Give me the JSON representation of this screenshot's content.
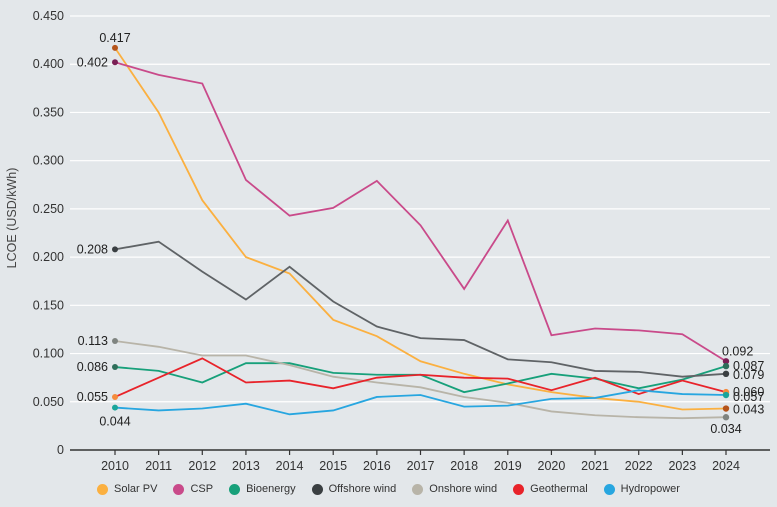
{
  "chart_data": {
    "type": "line",
    "title": "",
    "xlabel": "",
    "ylabel": "LCOE (USD/kWh)",
    "ylim": [
      0,
      0.45
    ],
    "yticks": [
      "0",
      "0.050",
      "0.100",
      "0.150",
      "0.200",
      "0.250",
      "0.300",
      "0.350",
      "0.400",
      "0.450"
    ],
    "ytick_values": [
      0,
      0.05,
      0.1,
      0.15,
      0.2,
      0.25,
      0.3,
      0.35,
      0.4,
      0.45
    ],
    "grid": true,
    "legend_position": "bottom",
    "x": [
      "2010",
      "2011",
      "2012",
      "2013",
      "2014",
      "2015",
      "2016",
      "2017",
      "2018",
      "2019",
      "2020",
      "2021",
      "2022",
      "2023",
      "2024"
    ],
    "series": [
      {
        "name": "Solar PV",
        "color": "#fbb040",
        "marker_color": "#b5541b",
        "values": [
          0.417,
          0.35,
          0.259,
          0.2,
          0.183,
          0.135,
          0.118,
          0.092,
          0.079,
          0.068,
          0.06,
          0.054,
          0.05,
          0.042,
          0.043
        ],
        "start_label": "0.417",
        "end_label": "0.043"
      },
      {
        "name": "CSP",
        "color": "#c94a8a",
        "marker_color": "#7a1f55",
        "values": [
          0.402,
          0.389,
          0.38,
          0.28,
          0.243,
          0.251,
          0.279,
          0.233,
          0.167,
          0.238,
          0.119,
          0.126,
          0.124,
          0.12,
          0.092
        ],
        "start_label": "0.402",
        "end_label": "0.092"
      },
      {
        "name": "Bioenergy",
        "color": "#17a07a",
        "marker_color": "#2e6e5a",
        "values": [
          0.086,
          0.082,
          0.07,
          0.09,
          0.09,
          0.08,
          0.078,
          0.078,
          0.06,
          0.069,
          0.079,
          0.074,
          0.064,
          0.073,
          0.087
        ],
        "start_label": "0.086",
        "end_label": "0.087"
      },
      {
        "name": "Offshore wind",
        "color": "#5f6366",
        "marker_color": "#3a3f42",
        "values": [
          0.208,
          0.216,
          0.185,
          0.156,
          0.19,
          0.154,
          0.128,
          0.116,
          0.114,
          0.094,
          0.091,
          0.082,
          0.081,
          0.076,
          0.079
        ],
        "start_label": "0.208",
        "end_label": "0.079"
      },
      {
        "name": "Onshore wind",
        "color": "#b8b4a8",
        "marker_color": "#7f8480",
        "values": [
          0.113,
          0.107,
          0.098,
          0.098,
          0.088,
          0.076,
          0.07,
          0.065,
          0.055,
          0.049,
          0.04,
          0.036,
          0.034,
          0.033,
          0.034
        ],
        "start_label": "0.113",
        "end_label": "0.034"
      },
      {
        "name": "Geothermal",
        "color": "#e8232a",
        "marker_color": "#f58b3c",
        "values": [
          0.055,
          0.075,
          0.095,
          0.07,
          0.072,
          0.064,
          0.075,
          0.078,
          0.075,
          0.074,
          0.062,
          0.075,
          0.058,
          0.072,
          0.06
        ],
        "start_label": "0.055",
        "end_label": "0.060"
      },
      {
        "name": "Hydropower",
        "color": "#27a6e0",
        "marker_color": "#1aa59a",
        "values": [
          0.044,
          0.041,
          0.043,
          0.048,
          0.037,
          0.041,
          0.055,
          0.057,
          0.045,
          0.046,
          0.053,
          0.054,
          0.062,
          0.058,
          0.057
        ],
        "start_label": "0.044",
        "end_label": "0.057"
      }
    ]
  },
  "legend": [
    {
      "label": "Solar PV",
      "color": "#fbb040"
    },
    {
      "label": "CSP",
      "color": "#c94a8a"
    },
    {
      "label": "Bioenergy",
      "color": "#17a07a"
    },
    {
      "label": "Offshore wind",
      "color": "#3a3f42"
    },
    {
      "label": "Onshore wind",
      "color": "#b8b4a8"
    },
    {
      "label": "Geothermal",
      "color": "#e8232a"
    },
    {
      "label": "Hydropower",
      "color": "#27a6e0"
    }
  ]
}
